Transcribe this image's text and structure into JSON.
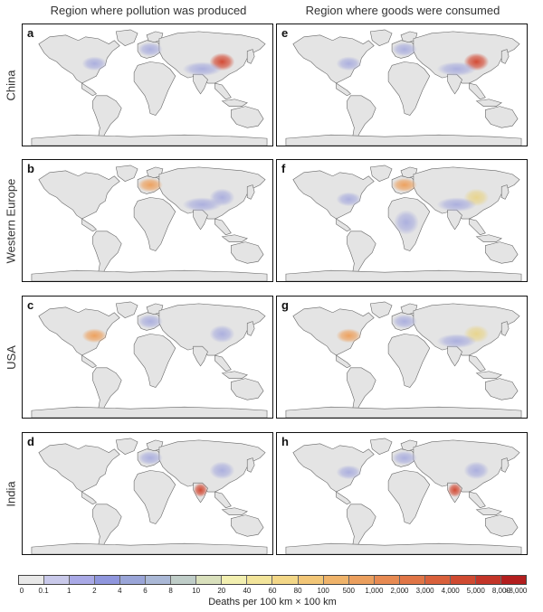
{
  "columns": [
    {
      "title": "Region where pollution was produced"
    },
    {
      "title": "Region where goods were consumed"
    }
  ],
  "rows": [
    {
      "label": "China"
    },
    {
      "label": "Western Europe"
    },
    {
      "label": "USA"
    },
    {
      "label": "India"
    }
  ],
  "panels": [
    {
      "letter": "a",
      "row": "China",
      "column": "produced",
      "hotspots": [
        {
          "region": "east-china",
          "level": "high"
        },
        {
          "region": "south-asia",
          "level": "low"
        },
        {
          "region": "europe",
          "level": "low"
        },
        {
          "region": "usa",
          "level": "low"
        }
      ]
    },
    {
      "letter": "e",
      "row": "China",
      "column": "consumed",
      "hotspots": [
        {
          "region": "east-china",
          "level": "high"
        },
        {
          "region": "south-asia",
          "level": "low"
        },
        {
          "region": "europe",
          "level": "low"
        },
        {
          "region": "usa",
          "level": "low"
        }
      ]
    },
    {
      "letter": "b",
      "row": "Western Europe",
      "column": "produced",
      "hotspots": [
        {
          "region": "europe",
          "level": "mid"
        },
        {
          "region": "east-china",
          "level": "low"
        },
        {
          "region": "south-asia",
          "level": "low"
        }
      ]
    },
    {
      "letter": "f",
      "row": "Western Europe",
      "column": "consumed",
      "hotspots": [
        {
          "region": "europe",
          "level": "mid"
        },
        {
          "region": "east-china",
          "level": "midlow"
        },
        {
          "region": "south-asia",
          "level": "low"
        },
        {
          "region": "africa",
          "level": "low"
        },
        {
          "region": "usa",
          "level": "low"
        }
      ]
    },
    {
      "letter": "c",
      "row": "USA",
      "column": "produced",
      "hotspots": [
        {
          "region": "usa",
          "level": "mid"
        },
        {
          "region": "europe",
          "level": "low"
        },
        {
          "region": "east-china",
          "level": "low"
        }
      ]
    },
    {
      "letter": "g",
      "row": "USA",
      "column": "consumed",
      "hotspots": [
        {
          "region": "usa",
          "level": "mid"
        },
        {
          "region": "east-china",
          "level": "midlow"
        },
        {
          "region": "europe",
          "level": "low"
        },
        {
          "region": "south-asia",
          "level": "low"
        }
      ]
    },
    {
      "letter": "d",
      "row": "India",
      "column": "produced",
      "hotspots": [
        {
          "region": "india",
          "level": "high"
        },
        {
          "region": "europe",
          "level": "low"
        },
        {
          "region": "east-china",
          "level": "low"
        }
      ]
    },
    {
      "letter": "h",
      "row": "India",
      "column": "consumed",
      "hotspots": [
        {
          "region": "india",
          "level": "high"
        },
        {
          "region": "europe",
          "level": "low"
        },
        {
          "region": "east-china",
          "level": "low"
        },
        {
          "region": "usa",
          "level": "low"
        }
      ]
    }
  ],
  "legend": {
    "title": "Deaths per 100 km × 100 km",
    "ticks": [
      "0",
      "0.1",
      "1",
      "2",
      "4",
      "6",
      "8",
      "10",
      "20",
      "40",
      "60",
      "80",
      "100",
      "500",
      "1,000",
      "2,000",
      "3,000",
      "4,000",
      "5,000",
      "8,000",
      ">8,000"
    ],
    "colors": [
      "#e8e8e8",
      "#c9c9ea",
      "#a9a9e6",
      "#8f96dd",
      "#9aa5d8",
      "#aab8d6",
      "#bfcdc8",
      "#d9e0bc",
      "#f2efb0",
      "#f2e49a",
      "#f3d787",
      "#f2c677",
      "#efb36a",
      "#eb9f5e",
      "#e78a52",
      "#e07546",
      "#d9603b",
      "#cf4a31",
      "#c33528",
      "#b31e1e"
    ]
  },
  "colors": {
    "land": "#e4e4e4",
    "coast": "#666666",
    "low": "#a9adde",
    "midlow": "#e8d48a",
    "mid": "#ee9e58",
    "high": "#d2432c"
  }
}
